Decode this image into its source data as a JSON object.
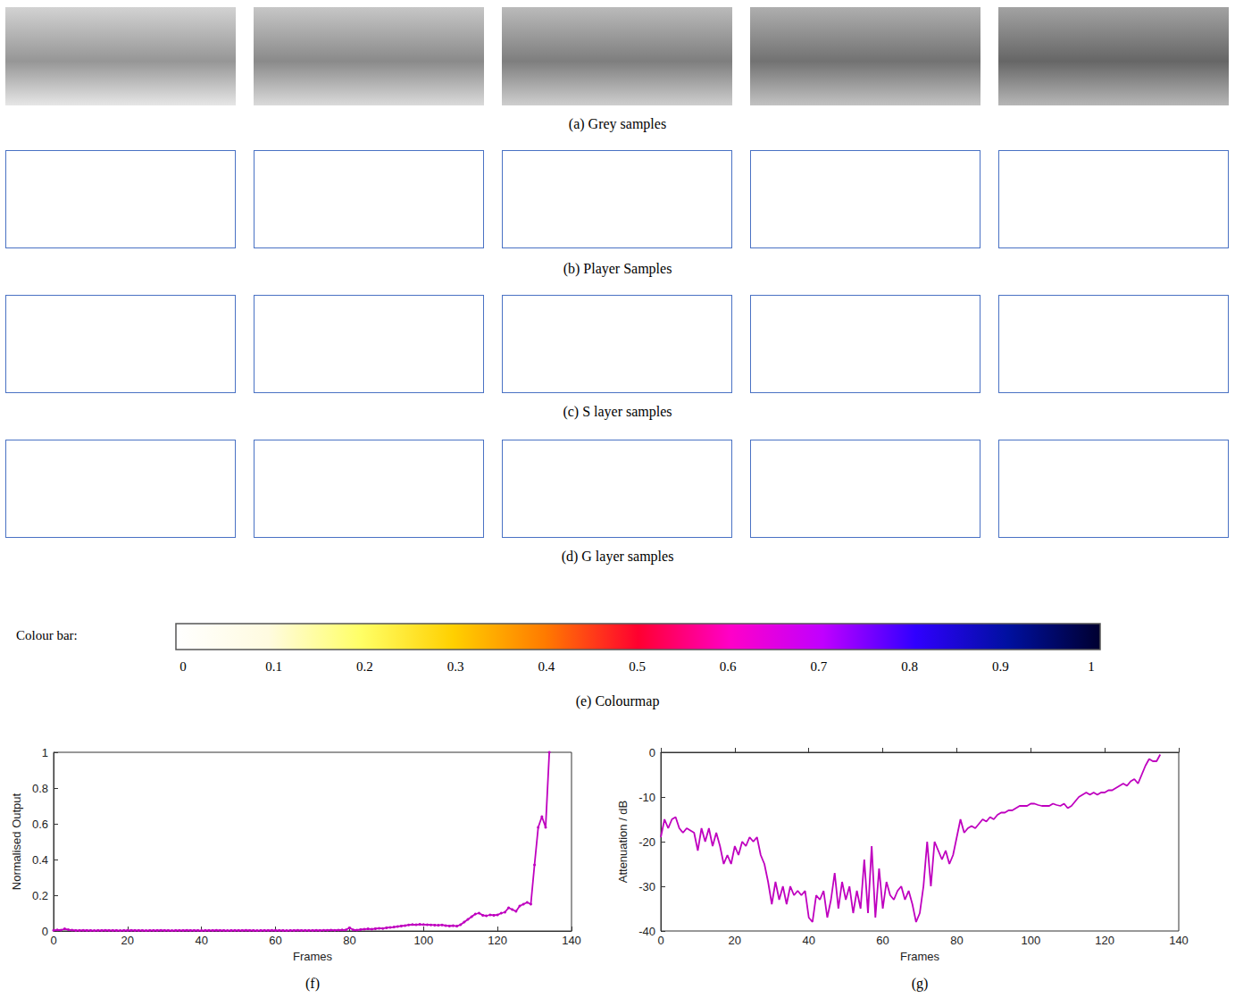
{
  "sample_rows": [
    {
      "caption": "(a) Grey samples"
    },
    {
      "caption": "(b) Player Samples"
    },
    {
      "caption": "(c) S layer samples"
    },
    {
      "caption": "(d) G layer samples"
    }
  ],
  "colourbar": {
    "label": "Colour bar:",
    "range": [
      0,
      1
    ],
    "ticks": [
      0,
      0.1,
      0.2,
      0.3,
      0.4,
      0.5,
      0.6,
      0.7,
      0.8,
      0.9,
      1
    ],
    "caption": "(e) Colourmap"
  },
  "chart_data": [
    {
      "type": "line",
      "caption": "(f)",
      "xlabel": "Frames",
      "ylabel": "Normalised Output",
      "x": [
        0,
        1,
        2,
        3,
        4,
        5,
        6,
        7,
        8,
        9,
        10,
        11,
        12,
        13,
        14,
        15,
        16,
        17,
        18,
        19,
        20,
        21,
        22,
        23,
        24,
        25,
        26,
        27,
        28,
        29,
        30,
        31,
        32,
        33,
        34,
        35,
        36,
        37,
        38,
        39,
        40,
        41,
        42,
        43,
        44,
        45,
        46,
        47,
        48,
        49,
        50,
        51,
        52,
        53,
        54,
        55,
        56,
        57,
        58,
        59,
        60,
        61,
        62,
        63,
        64,
        65,
        66,
        67,
        68,
        69,
        70,
        71,
        72,
        73,
        74,
        75,
        76,
        77,
        78,
        79,
        80,
        81,
        82,
        83,
        84,
        85,
        86,
        87,
        88,
        89,
        90,
        91,
        92,
        93,
        94,
        95,
        96,
        97,
        98,
        99,
        100,
        101,
        102,
        103,
        104,
        105,
        106,
        107,
        108,
        109,
        110,
        111,
        112,
        113,
        114,
        115,
        116,
        117,
        118,
        119,
        120,
        121,
        122,
        123,
        124,
        125,
        126,
        127,
        128,
        129,
        130,
        131,
        132,
        133,
        134
      ],
      "values": [
        0.004,
        0.006,
        0.005,
        0.012,
        0.007,
        0.005,
        0.003,
        0.003,
        0.004,
        0.003,
        0.003,
        0.002,
        0.003,
        0.003,
        0.004,
        0.003,
        0.003,
        0.003,
        0.002,
        0.003,
        0.003,
        0.004,
        0.003,
        0.003,
        0.003,
        0.002,
        0.003,
        0.003,
        0.003,
        0.004,
        0.003,
        0.003,
        0.002,
        0.003,
        0.003,
        0.003,
        0.004,
        0.003,
        0.003,
        0.003,
        0.002,
        0.003,
        0.003,
        0.003,
        0.004,
        0.003,
        0.003,
        0.002,
        0.003,
        0.003,
        0.003,
        0.003,
        0.004,
        0.003,
        0.003,
        0.002,
        0.003,
        0.003,
        0.003,
        0.004,
        0.003,
        0.003,
        0.003,
        0.002,
        0.003,
        0.003,
        0.004,
        0.003,
        0.003,
        0.003,
        0.003,
        0.004,
        0.003,
        0.004,
        0.004,
        0.005,
        0.004,
        0.005,
        0.006,
        0.006,
        0.018,
        0.006,
        0.005,
        0.008,
        0.01,
        0.012,
        0.01,
        0.013,
        0.015,
        0.014,
        0.018,
        0.02,
        0.022,
        0.025,
        0.028,
        0.03,
        0.034,
        0.036,
        0.035,
        0.037,
        0.036,
        0.035,
        0.034,
        0.033,
        0.032,
        0.034,
        0.03,
        0.028,
        0.03,
        0.027,
        0.035,
        0.05,
        0.065,
        0.08,
        0.095,
        0.1,
        0.088,
        0.085,
        0.09,
        0.088,
        0.09,
        0.1,
        0.105,
        0.13,
        0.12,
        0.11,
        0.14,
        0.15,
        0.16,
        0.15,
        0.37,
        0.58,
        0.64,
        0.58,
        1.0
      ],
      "color": "#bf00bf",
      "marker": "circle",
      "xlim": [
        0,
        140
      ],
      "xticks": [
        0,
        20,
        40,
        60,
        80,
        100,
        120,
        140
      ],
      "ylim": [
        0,
        1
      ],
      "yticks": [
        0,
        0.2,
        0.4,
        0.6,
        0.8,
        1
      ],
      "grid": false
    },
    {
      "type": "line",
      "caption": "(g)",
      "xlabel": "Frames",
      "ylabel": "Attenuation / dB",
      "x": [
        0,
        1,
        2,
        3,
        4,
        5,
        6,
        7,
        8,
        9,
        10,
        11,
        12,
        13,
        14,
        15,
        16,
        17,
        18,
        19,
        20,
        21,
        22,
        23,
        24,
        25,
        26,
        27,
        28,
        29,
        30,
        31,
        32,
        33,
        34,
        35,
        36,
        37,
        38,
        39,
        40,
        41,
        42,
        43,
        44,
        45,
        46,
        47,
        48,
        49,
        50,
        51,
        52,
        53,
        54,
        55,
        56,
        57,
        58,
        59,
        60,
        61,
        62,
        63,
        64,
        65,
        66,
        67,
        68,
        69,
        70,
        71,
        72,
        73,
        74,
        75,
        76,
        77,
        78,
        79,
        80,
        81,
        82,
        83,
        84,
        85,
        86,
        87,
        88,
        89,
        90,
        91,
        92,
        93,
        94,
        95,
        96,
        97,
        98,
        99,
        100,
        101,
        102,
        103,
        104,
        105,
        106,
        107,
        108,
        109,
        110,
        111,
        112,
        113,
        114,
        115,
        116,
        117,
        118,
        119,
        120,
        121,
        122,
        123,
        124,
        125,
        126,
        127,
        128,
        129,
        130,
        131,
        132,
        133,
        134,
        135
      ],
      "values": [
        -19,
        -15,
        -17,
        -15,
        -14.5,
        -17,
        -18,
        -17,
        -17.5,
        -18,
        -22,
        -17,
        -20,
        -17,
        -21,
        -18,
        -21,
        -25,
        -23,
        -25,
        -21,
        -23,
        -20,
        -21,
        -19,
        -20,
        -19,
        -23,
        -25,
        -29,
        -34,
        -29,
        -33,
        -30,
        -34,
        -30,
        -32,
        -31,
        -32,
        -31,
        -37,
        -38,
        -32,
        -33,
        -31,
        -37,
        -33,
        -27,
        -35,
        -29,
        -33,
        -30,
        -36,
        -31,
        -35,
        -24,
        -36,
        -21,
        -37,
        -26,
        -35,
        -29,
        -32,
        -33,
        -31,
        -30,
        -33,
        -31,
        -34,
        -38,
        -36,
        -30,
        -20,
        -30,
        -20,
        -22,
        -24,
        -22,
        -25,
        -23,
        -19,
        -15,
        -18,
        -17,
        -16.5,
        -17,
        -16,
        -15,
        -15.5,
        -14.5,
        -15,
        -14,
        -13.5,
        -13.5,
        -13,
        -13,
        -12.5,
        -12,
        -12,
        -12,
        -11.5,
        -11.5,
        -11.8,
        -12,
        -12,
        -12,
        -11.5,
        -11.8,
        -12,
        -11.5,
        -12.5,
        -12,
        -11,
        -10,
        -9.5,
        -9,
        -9.5,
        -9,
        -9.5,
        -9,
        -9,
        -8.5,
        -8.5,
        -8,
        -7.5,
        -7,
        -7.5,
        -6.5,
        -6,
        -7,
        -5,
        -3,
        -1.5,
        -2,
        -2,
        -0.5
      ],
      "color": "#bf00bf",
      "marker": "none",
      "xlim": [
        0,
        140
      ],
      "xticks": [
        0,
        20,
        40,
        60,
        80,
        100,
        120,
        140
      ],
      "ylim": [
        -40,
        0
      ],
      "yticks": [
        -40,
        -30,
        -20,
        -10,
        0
      ],
      "grid": false
    }
  ]
}
